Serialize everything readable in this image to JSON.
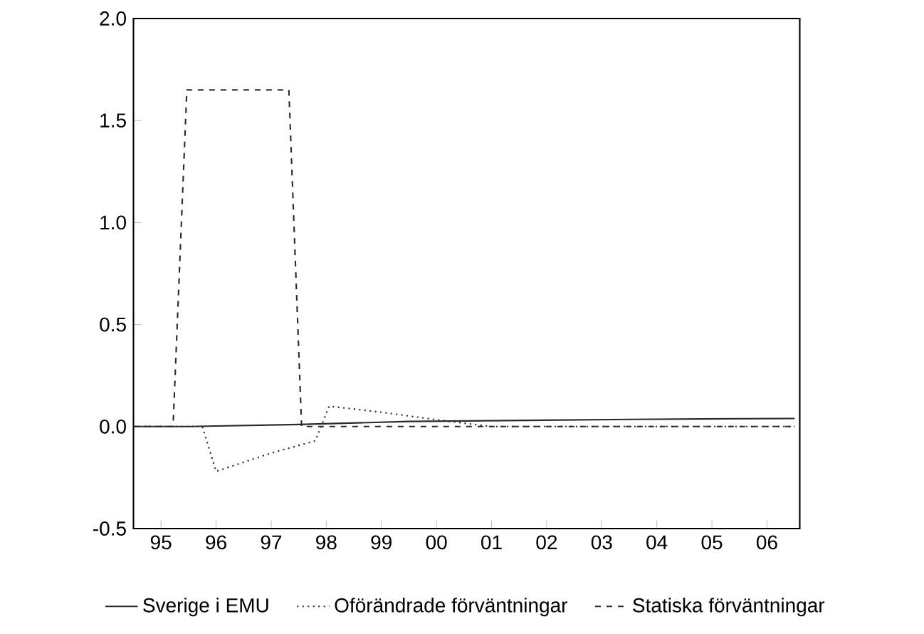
{
  "chart_data": {
    "type": "line",
    "xlim": [
      "1995-01-01",
      "2007-02-05"
    ],
    "ylim": [
      -0.5,
      2.0
    ],
    "xticks": [
      {
        "value": "1995-07-01",
        "label": "95"
      },
      {
        "value": "1996-07-01",
        "label": "96"
      },
      {
        "value": "1997-07-01",
        "label": "97"
      },
      {
        "value": "1998-07-01",
        "label": "98"
      },
      {
        "value": "1999-07-01",
        "label": "99"
      },
      {
        "value": "2000-07-01",
        "label": "00"
      },
      {
        "value": "2001-07-01",
        "label": "01"
      },
      {
        "value": "2002-07-01",
        "label": "02"
      },
      {
        "value": "2003-07-01",
        "label": "03"
      },
      {
        "value": "2004-07-01",
        "label": "04"
      },
      {
        "value": "2005-07-01",
        "label": "05"
      },
      {
        "value": "2006-07-01",
        "label": "06"
      }
    ],
    "yticks": [
      {
        "value": -0.5,
        "label": "-0.5"
      },
      {
        "value": 0,
        "label": "0.0"
      },
      {
        "value": 0.5,
        "label": "0.5"
      },
      {
        "value": 1.0,
        "label": "1.0"
      },
      {
        "value": 1.5,
        "label": "1.5"
      },
      {
        "value": 2.0,
        "label": "2.0"
      }
    ],
    "grid": false,
    "legend": "bottom",
    "marker": "none",
    "series": [
      {
        "name": "Sverige i EMU",
        "color": "#2a2a2a",
        "line_style": "solid",
        "x": [
          "1995-01-01",
          "1996-01-01",
          "1998-01-01",
          "2000-01-01",
          "2002-01-01",
          "2004-01-01",
          "2007-01-01"
        ],
        "values": [
          0,
          0,
          0.01,
          0.025,
          0.03,
          0.035,
          0.04
        ]
      },
      {
        "name": "Oförändrade förväntningar",
        "color": "#2a2a2a",
        "line_style": "dotted",
        "x": [
          "1995-01-01",
          "1996-04-01",
          "1996-07-01",
          "1997-07-01",
          "1998-04-20",
          "1998-07-20",
          "1999-07-01",
          "2000-08-07",
          "2001-07-01",
          "2007-01-01"
        ],
        "values": [
          0,
          0,
          -0.22,
          -0.13,
          -0.07,
          0.1,
          0.07,
          0.03,
          0.0,
          0.0
        ]
      },
      {
        "name": "Statiska förväntningar",
        "color": "#2a2a2a",
        "line_style": "dashed",
        "x": [
          "1995-01-01",
          "1995-09-20",
          "1995-12-20",
          "1997-10-27",
          "1998-01-20",
          "2007-01-01"
        ],
        "values": [
          0,
          0,
          1.65,
          1.65,
          0,
          0
        ]
      }
    ]
  }
}
